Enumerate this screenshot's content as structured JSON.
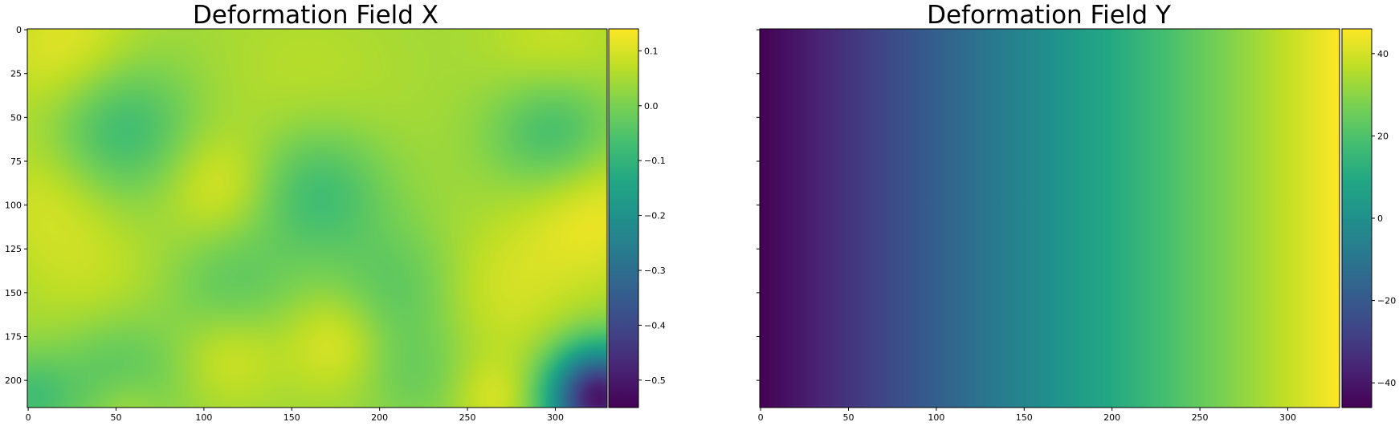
{
  "chart_data": [
    {
      "type": "heatmap",
      "title": "Deformation Field X",
      "x_ticks": [
        0,
        50,
        100,
        150,
        200,
        250,
        300
      ],
      "y_ticks": [
        0,
        25,
        50,
        75,
        100,
        125,
        150,
        175,
        200
      ],
      "xlim": [
        -0.5,
        329.5
      ],
      "ylim": [
        215.5,
        -0.5
      ],
      "colormap": "viridis",
      "colorbar": {
        "range": [
          -0.55,
          0.14
        ],
        "ticks": [
          0.1,
          0.0,
          -0.1,
          -0.2,
          -0.3,
          -0.4,
          -0.5
        ],
        "tick_labels": [
          "0.1",
          "0.0",
          "−0.1",
          "−0.2",
          "−0.3",
          "−0.4",
          "−0.5"
        ]
      },
      "field": {
        "base": 0.04,
        "blobs": [
          {
            "x": 25,
            "y": 15,
            "v": 0.09,
            "s": 30
          },
          {
            "x": 50,
            "y": 55,
            "v": -0.14,
            "s": 30
          },
          {
            "x": 300,
            "y": 58,
            "v": -0.14,
            "s": 26
          },
          {
            "x": 300,
            "y": 18,
            "v": 0.06,
            "s": 28
          },
          {
            "x": 165,
            "y": 92,
            "v": -0.12,
            "s": 28
          },
          {
            "x": 108,
            "y": 90,
            "v": 0.07,
            "s": 22
          },
          {
            "x": 15,
            "y": 95,
            "v": 0.06,
            "s": 28
          },
          {
            "x": 320,
            "y": 102,
            "v": 0.09,
            "s": 30
          },
          {
            "x": 160,
            "y": 38,
            "v": 0.03,
            "s": 40
          },
          {
            "x": 115,
            "y": 146,
            "v": -0.07,
            "s": 26
          },
          {
            "x": 210,
            "y": 148,
            "v": -0.07,
            "s": 26
          },
          {
            "x": 40,
            "y": 150,
            "v": 0.04,
            "s": 30
          },
          {
            "x": 270,
            "y": 150,
            "v": 0.05,
            "s": 28
          },
          {
            "x": 50,
            "y": 195,
            "v": -0.09,
            "s": 26
          },
          {
            "x": 0,
            "y": 210,
            "v": -0.1,
            "s": 18
          },
          {
            "x": 115,
            "y": 185,
            "v": 0.06,
            "s": 20
          },
          {
            "x": 175,
            "y": 178,
            "v": 0.07,
            "s": 20
          },
          {
            "x": 220,
            "y": 198,
            "v": -0.05,
            "s": 22
          },
          {
            "x": 265,
            "y": 210,
            "v": 0.06,
            "s": 16
          },
          {
            "x": 55,
            "y": 215,
            "v": 0.05,
            "s": 14
          },
          {
            "x": 325,
            "y": 210,
            "v": -0.55,
            "s": 20
          }
        ]
      }
    },
    {
      "type": "heatmap",
      "title": "Deformation Field Y",
      "x_ticks": [
        0,
        50,
        100,
        150,
        200,
        250,
        300
      ],
      "y_ticks": [
        0,
        25,
        50,
        75,
        100,
        125,
        150,
        175,
        200
      ],
      "xlim": [
        -0.5,
        329.5
      ],
      "ylim": [
        215.5,
        -0.5
      ],
      "colormap": "viridis",
      "colorbar": {
        "range": [
          -46,
          46
        ],
        "ticks": [
          40,
          20,
          0,
          -20,
          -40
        ],
        "tick_labels": [
          "40",
          "20",
          "0",
          "−20",
          "−40"
        ]
      },
      "field": {
        "gradient": "horizontal",
        "x_start_value": -46,
        "x_end_value": 46
      }
    }
  ]
}
